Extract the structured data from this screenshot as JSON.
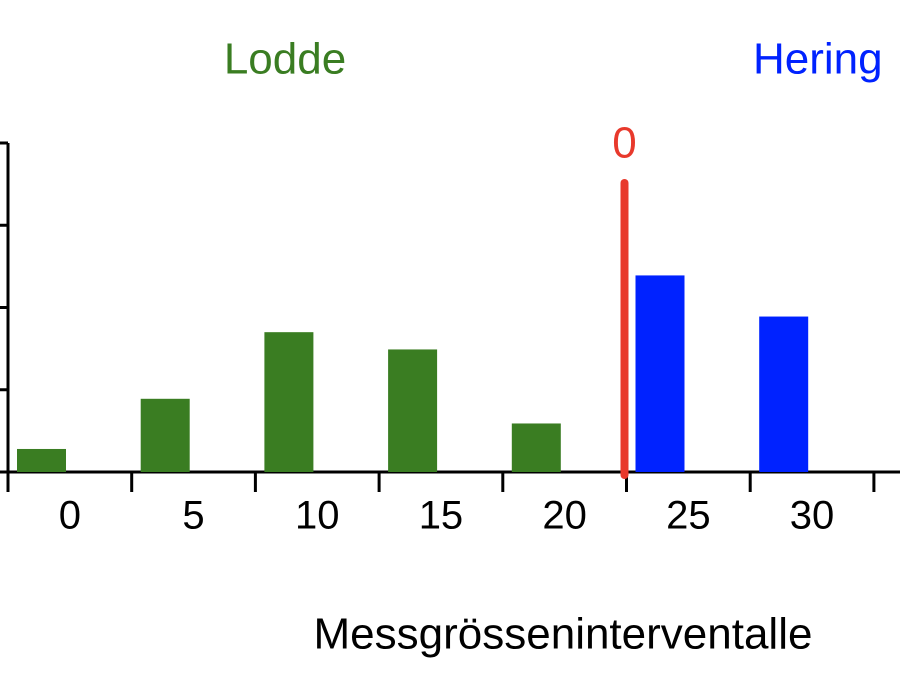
{
  "chart_data": {
    "type": "bar",
    "categories": [
      "0",
      "5",
      "10",
      "15",
      "20",
      "25",
      "30"
    ],
    "series": [
      {
        "name": "Lodde",
        "color": "#3a7d22",
        "values": [
          0.28,
          0.89,
          1.7,
          1.49,
          0.59,
          null,
          null
        ]
      },
      {
        "name": "Hering",
        "color": "#0022ff",
        "values": [
          null,
          null,
          null,
          null,
          null,
          2.39,
          1.89
        ]
      }
    ],
    "x_label": "Messgrösseninterventalle",
    "annotation": {
      "label": "0",
      "color": "#e8392c"
    },
    "ylim": [
      0,
      4
    ],
    "yticks": [
      0,
      1,
      2,
      3,
      4
    ]
  }
}
